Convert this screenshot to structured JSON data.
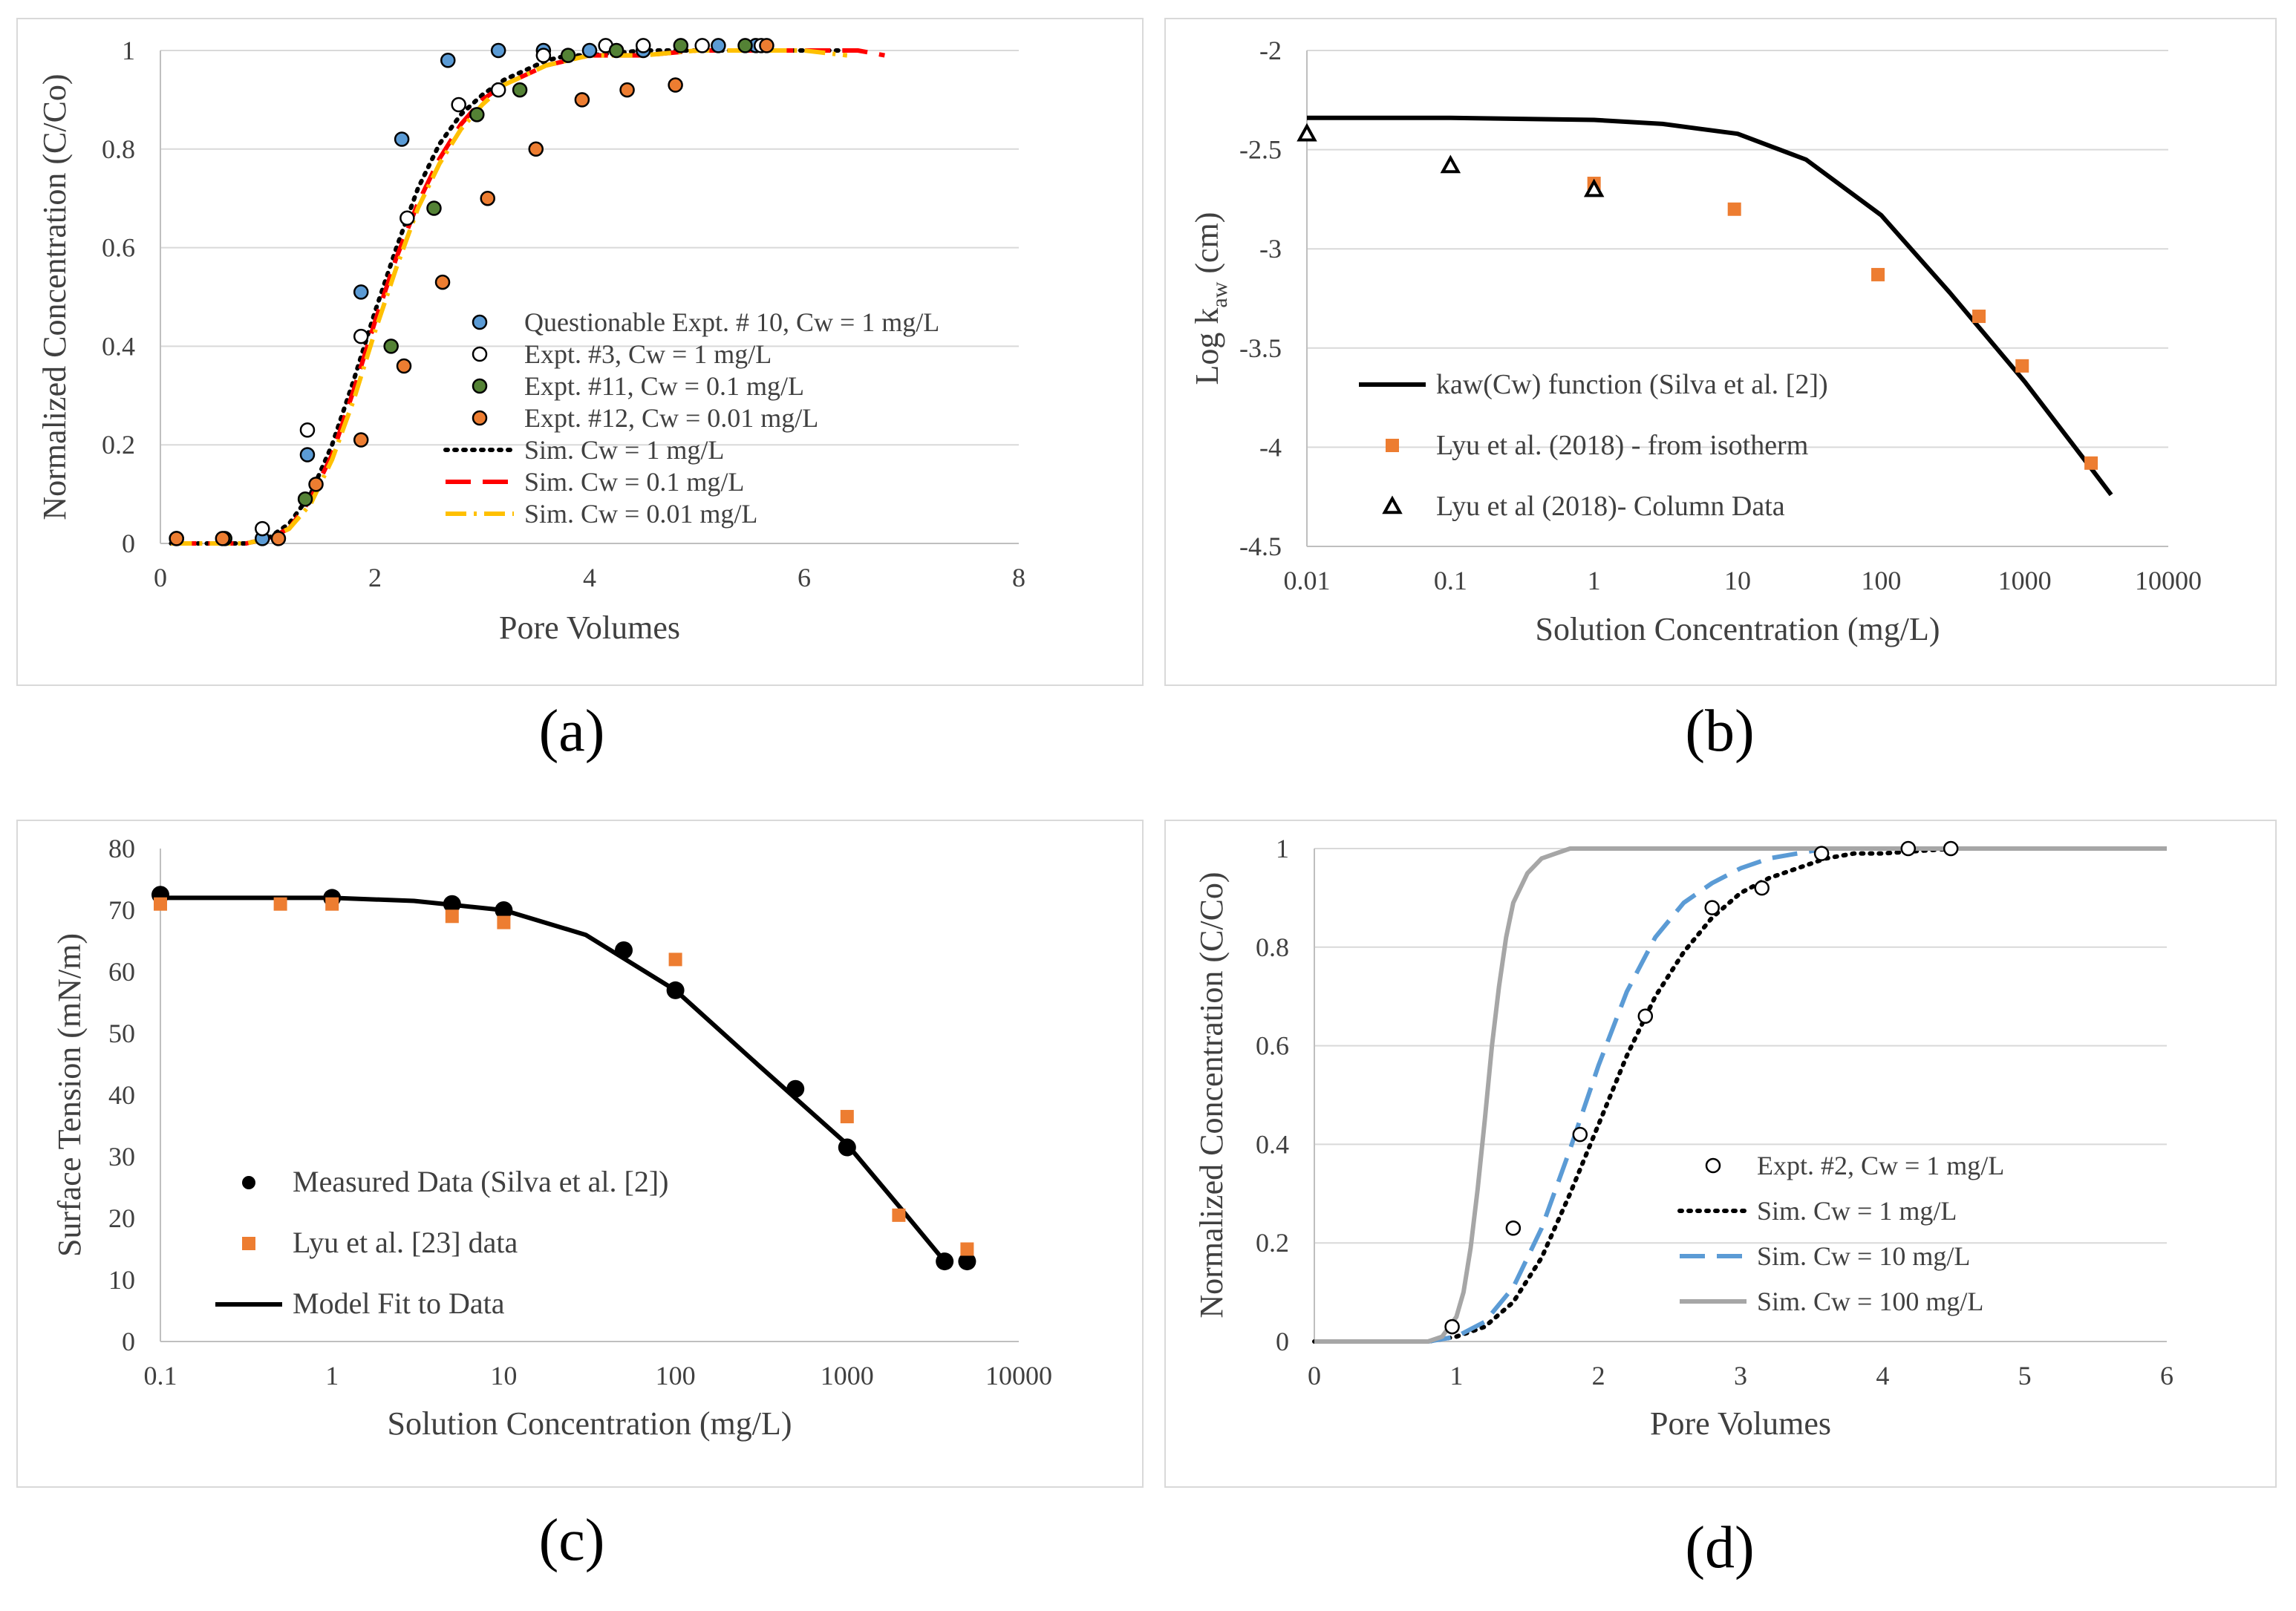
{
  "panel_labels": [
    "(a)",
    "(b)",
    "(c)",
    "(d)"
  ],
  "colors": {
    "blue": "#5b9bd5",
    "orange": "#ed7d31",
    "green": "#548235",
    "red": "#ff0000",
    "gold": "#ffc000",
    "black": "#000000",
    "gray": "#a6a6a6",
    "axis": "#595959",
    "grid": "#d9d9d9"
  },
  "chart_data": [
    {
      "id": "a",
      "type": "scatter",
      "xlabel": "Pore Volumes",
      "ylabel": "Normalized Concentration (C/Co)",
      "xscale": "linear",
      "xlim": [
        0,
        8
      ],
      "ylim": [
        0,
        1
      ],
      "xticks": [
        0,
        2,
        4,
        6,
        8
      ],
      "xtick_labels": [
        "0",
        "2",
        "4",
        "6",
        "8"
      ],
      "yticks": [
        0,
        0.2,
        0.4,
        0.6,
        0.8,
        1
      ],
      "ytick_labels": [
        "0",
        "0.2",
        "0.4",
        "0.6",
        "0.8",
        "1"
      ],
      "grid": "horizontal",
      "legend_position": "bottom-right",
      "series": [
        {
          "name": "Questionable Expt. # 10, Cw = 1 mg/L",
          "style": "marker",
          "marker": "circle",
          "color": "#5b9bd5",
          "outline": "#000000",
          "x": [
            0.95,
            1.37,
            1.87,
            2.25,
            2.68,
            3.15,
            3.57,
            4.0,
            4.5,
            5.2,
            5.55
          ],
          "y": [
            0.01,
            0.18,
            0.51,
            0.82,
            0.98,
            1.0,
            1.0,
            1.0,
            1.0,
            1.01,
            1.01
          ]
        },
        {
          "name": "Expt. #3, Cw = 1 mg/L",
          "style": "marker",
          "marker": "circle",
          "color": "#ffffff",
          "outline": "#000000",
          "x": [
            0.95,
            1.37,
            1.87,
            2.3,
            2.78,
            3.15,
            3.57,
            4.15,
            4.5,
            5.05,
            5.6
          ],
          "y": [
            0.03,
            0.23,
            0.42,
            0.66,
            0.89,
            0.92,
            0.99,
            1.01,
            1.01,
            1.01,
            1.01
          ]
        },
        {
          "name": "Expt. #11, Cw = 0.1 mg/L",
          "style": "marker",
          "marker": "circle",
          "color": "#548235",
          "outline": "#000000",
          "x": [
            0.15,
            0.6,
            1.35,
            2.15,
            2.55,
            2.95,
            3.35,
            3.8,
            4.25,
            4.85,
            5.45
          ],
          "y": [
            0.01,
            0.01,
            0.09,
            0.4,
            0.68,
            0.87,
            0.92,
            0.99,
            1.0,
            1.01,
            1.01
          ]
        },
        {
          "name": "Expt. #12, Cw = 0.01 mg/L",
          "style": "marker",
          "marker": "circle",
          "color": "#ed7d31",
          "outline": "#000000",
          "x": [
            0.15,
            0.58,
            1.1,
            1.45,
            1.87,
            2.27,
            2.63,
            3.05,
            3.5,
            3.93,
            4.35,
            4.8,
            5.65
          ],
          "y": [
            0.01,
            0.01,
            0.01,
            0.12,
            0.21,
            0.36,
            0.53,
            0.7,
            0.8,
            0.9,
            0.92,
            0.93,
            1.01
          ]
        },
        {
          "name": "Sim. Cw = 1 mg/L",
          "style": "line",
          "dash": "dot",
          "color": "#000000",
          "x": [
            0.1,
            0.6,
            0.8,
            1.0,
            1.2,
            1.4,
            1.6,
            1.8,
            2.0,
            2.2,
            2.4,
            2.6,
            2.8,
            3.0,
            3.2,
            3.4,
            3.6,
            3.8,
            4.0,
            4.5,
            5.0,
            5.5,
            6.0,
            6.5
          ],
          "y": [
            0.0,
            0.0,
            0.0,
            0.01,
            0.04,
            0.1,
            0.2,
            0.33,
            0.47,
            0.6,
            0.72,
            0.81,
            0.87,
            0.91,
            0.94,
            0.96,
            0.98,
            0.99,
            0.99,
            1.0,
            1.0,
            1.0,
            1.0,
            1.0
          ]
        },
        {
          "name": "Sim. Cw = 0.1 mg/L",
          "style": "line",
          "dash": "dash",
          "color": "#ff0000",
          "x": [
            0.1,
            0.8,
            1.0,
            1.2,
            1.4,
            1.6,
            1.8,
            2.0,
            2.2,
            2.4,
            2.6,
            2.8,
            3.0,
            3.2,
            3.4,
            3.6,
            3.8,
            4.0,
            4.5,
            5.0,
            5.5,
            6.0,
            6.5,
            6.75
          ],
          "y": [
            0.0,
            0.0,
            0.01,
            0.03,
            0.09,
            0.18,
            0.31,
            0.45,
            0.58,
            0.69,
            0.78,
            0.85,
            0.9,
            0.93,
            0.95,
            0.97,
            0.98,
            0.99,
            0.99,
            1.0,
            1.0,
            1.0,
            1.0,
            0.99
          ]
        },
        {
          "name": "Sim. Cw = 0.01 mg/L",
          "style": "line",
          "dash": "dashdot",
          "color": "#ffc000",
          "x": [
            0.1,
            0.8,
            1.0,
            1.2,
            1.4,
            1.6,
            1.8,
            2.0,
            2.2,
            2.4,
            2.6,
            2.8,
            3.0,
            3.2,
            3.4,
            3.6,
            3.8,
            4.0,
            4.5,
            5.0,
            5.5,
            6.0,
            6.4
          ],
          "y": [
            0.0,
            0.0,
            0.01,
            0.03,
            0.08,
            0.17,
            0.29,
            0.43,
            0.56,
            0.68,
            0.77,
            0.84,
            0.89,
            0.93,
            0.95,
            0.97,
            0.98,
            0.99,
            0.99,
            1.0,
            1.0,
            1.0,
            0.99
          ]
        }
      ]
    },
    {
      "id": "b",
      "type": "scatter",
      "xlabel": "Solution Concentration (mg/L)",
      "ylabel_main": "Log k",
      "ylabel_sub": "aw",
      "ylabel_tail": " (cm)",
      "xscale": "log",
      "xlim": [
        0.01,
        10000
      ],
      "ylim": [
        -4.5,
        -2
      ],
      "xticks": [
        0.01,
        0.1,
        1,
        10,
        100,
        1000,
        10000
      ],
      "xtick_labels": [
        "0.01",
        "0.1",
        "1",
        "10",
        "100",
        "1000",
        "10000"
      ],
      "yticks": [
        -4.5,
        -4,
        -3.5,
        -3,
        -2.5,
        -2
      ],
      "ytick_labels": [
        "-4.5",
        "-4",
        "-3.5",
        "-3",
        "-2.5",
        "-2"
      ],
      "grid": "horizontal",
      "legend_position": "bottom-left",
      "series": [
        {
          "name": "kaw(Cw) function (Silva et al. [2])",
          "style": "line",
          "dash": "solid",
          "color": "#000000",
          "x": [
            0.01,
            0.1,
            1,
            3,
            10,
            30,
            100,
            300,
            1000,
            3000,
            4000
          ],
          "y": [
            -2.34,
            -2.34,
            -2.35,
            -2.37,
            -2.42,
            -2.55,
            -2.83,
            -3.22,
            -3.67,
            -4.12,
            -4.24
          ]
        },
        {
          "name": "Lyu et al. (2018) - from isotherm",
          "style": "marker",
          "marker": "square",
          "color": "#ed7d31",
          "x": [
            1,
            9.5,
            95,
            480,
            960,
            2900
          ],
          "y": [
            -2.67,
            -2.8,
            -3.13,
            -3.34,
            -3.59,
            -4.08
          ]
        },
        {
          "name": "Lyu et al (2018)- Column Data",
          "style": "marker",
          "marker": "triangle",
          "color": "#ffffff",
          "outline": "#000000",
          "x": [
            0.01,
            0.1,
            1
          ],
          "y": [
            -2.42,
            -2.58,
            -2.7
          ]
        }
      ]
    },
    {
      "id": "c",
      "type": "scatter",
      "xlabel": "Solution Concentration (mg/L)",
      "ylabel": "Surface Tension (mN/m)",
      "xscale": "log",
      "xlim": [
        0.1,
        10000
      ],
      "ylim": [
        0,
        80
      ],
      "xticks": [
        0.1,
        1,
        10,
        100,
        1000,
        10000
      ],
      "xtick_labels": [
        "0.1",
        "1",
        "10",
        "100",
        "1000",
        "10000"
      ],
      "yticks": [
        0,
        10,
        20,
        30,
        40,
        50,
        60,
        70,
        80
      ],
      "ytick_labels": [
        "0",
        "10",
        "20",
        "30",
        "40",
        "50",
        "60",
        "70",
        "80"
      ],
      "grid": "none",
      "legend_position": "bottom-left",
      "series": [
        {
          "name": "Measured Data (Silva et al. [2])",
          "style": "marker",
          "marker": "circle",
          "color": "#000000",
          "x": [
            0.1,
            1,
            5,
            10,
            50,
            100,
            500,
            1000,
            3700,
            5000
          ],
          "y": [
            72.5,
            72,
            71,
            70,
            63.5,
            57,
            41,
            31.5,
            13,
            13
          ]
        },
        {
          "name": "Lyu et al. [23] data",
          "style": "marker",
          "marker": "square",
          "color": "#ed7d31",
          "x": [
            0.1,
            0.5,
            1,
            5,
            10,
            100,
            1000,
            2000,
            5000
          ],
          "y": [
            71,
            71,
            71,
            69,
            68,
            62,
            36.5,
            20.5,
            15
          ]
        },
        {
          "name": "Model Fit to Data",
          "style": "line",
          "dash": "solid",
          "color": "#000000",
          "x": [
            0.1,
            1,
            3,
            10,
            30,
            100,
            300,
            1000,
            2000,
            3700
          ],
          "y": [
            72,
            72,
            71.5,
            70,
            66,
            57,
            45,
            32,
            22,
            13
          ]
        }
      ]
    },
    {
      "id": "d",
      "type": "scatter",
      "xlabel": "Pore Volumes",
      "ylabel": "Normalized Concentration (C/Co)",
      "xscale": "linear",
      "xlim": [
        0,
        6
      ],
      "ylim": [
        0,
        1
      ],
      "xticks": [
        0,
        1,
        2,
        3,
        4,
        5,
        6
      ],
      "xtick_labels": [
        "0",
        "1",
        "2",
        "3",
        "4",
        "5",
        "6"
      ],
      "yticks": [
        0,
        0.2,
        0.4,
        0.6,
        0.8,
        1
      ],
      "ytick_labels": [
        "0",
        "0.2",
        "0.4",
        "0.6",
        "0.8",
        "1"
      ],
      "grid": "horizontal",
      "legend_position": "bottom-right",
      "series": [
        {
          "name": "Expt. #2, Cw = 1 mg/L",
          "style": "marker",
          "marker": "circle",
          "color": "#ffffff",
          "outline": "#000000",
          "x": [
            0.97,
            1.4,
            1.87,
            2.33,
            2.8,
            3.15,
            3.57,
            4.18,
            4.48
          ],
          "y": [
            0.03,
            0.23,
            0.42,
            0.66,
            0.88,
            0.92,
            0.99,
            1.0,
            1.0
          ]
        },
        {
          "name": "Sim. Cw = 1 mg/L",
          "style": "line",
          "dash": "dot",
          "color": "#000000",
          "x": [
            0,
            0.8,
            1.0,
            1.2,
            1.4,
            1.6,
            1.8,
            2.0,
            2.2,
            2.4,
            2.6,
            2.8,
            3.0,
            3.2,
            3.4,
            3.6,
            3.8,
            4.0,
            4.5,
            4.9
          ],
          "y": [
            0,
            0,
            0.01,
            0.03,
            0.08,
            0.17,
            0.3,
            0.44,
            0.58,
            0.7,
            0.79,
            0.86,
            0.91,
            0.94,
            0.96,
            0.98,
            0.99,
            0.99,
            1.0,
            1.0
          ]
        },
        {
          "name": "Sim. Cw = 10 mg/L",
          "style": "line",
          "dash": "dash",
          "color": "#5b9bd5",
          "x": [
            0,
            0.8,
            1.0,
            1.2,
            1.4,
            1.6,
            1.8,
            2.0,
            2.2,
            2.4,
            2.6,
            2.8,
            3.0,
            3.2,
            3.4,
            3.6,
            3.8
          ],
          "y": [
            0,
            0,
            0.01,
            0.04,
            0.11,
            0.23,
            0.39,
            0.56,
            0.71,
            0.82,
            0.89,
            0.93,
            0.96,
            0.98,
            0.99,
            1.0,
            1.0
          ]
        },
        {
          "name": "Sim. Cw = 100 mg/L",
          "style": "line",
          "dash": "solid",
          "color": "#a6a6a6",
          "x": [
            0,
            0.8,
            0.9,
            1.0,
            1.05,
            1.1,
            1.15,
            1.2,
            1.25,
            1.3,
            1.35,
            1.4,
            1.5,
            1.6,
            1.7,
            1.8,
            2.0,
            2.5,
            3.0,
            6.0
          ],
          "y": [
            0,
            0,
            0.01,
            0.05,
            0.1,
            0.19,
            0.31,
            0.45,
            0.6,
            0.72,
            0.82,
            0.89,
            0.95,
            0.98,
            0.99,
            1.0,
            1.0,
            1.0,
            1.0,
            1.0
          ]
        }
      ]
    }
  ]
}
